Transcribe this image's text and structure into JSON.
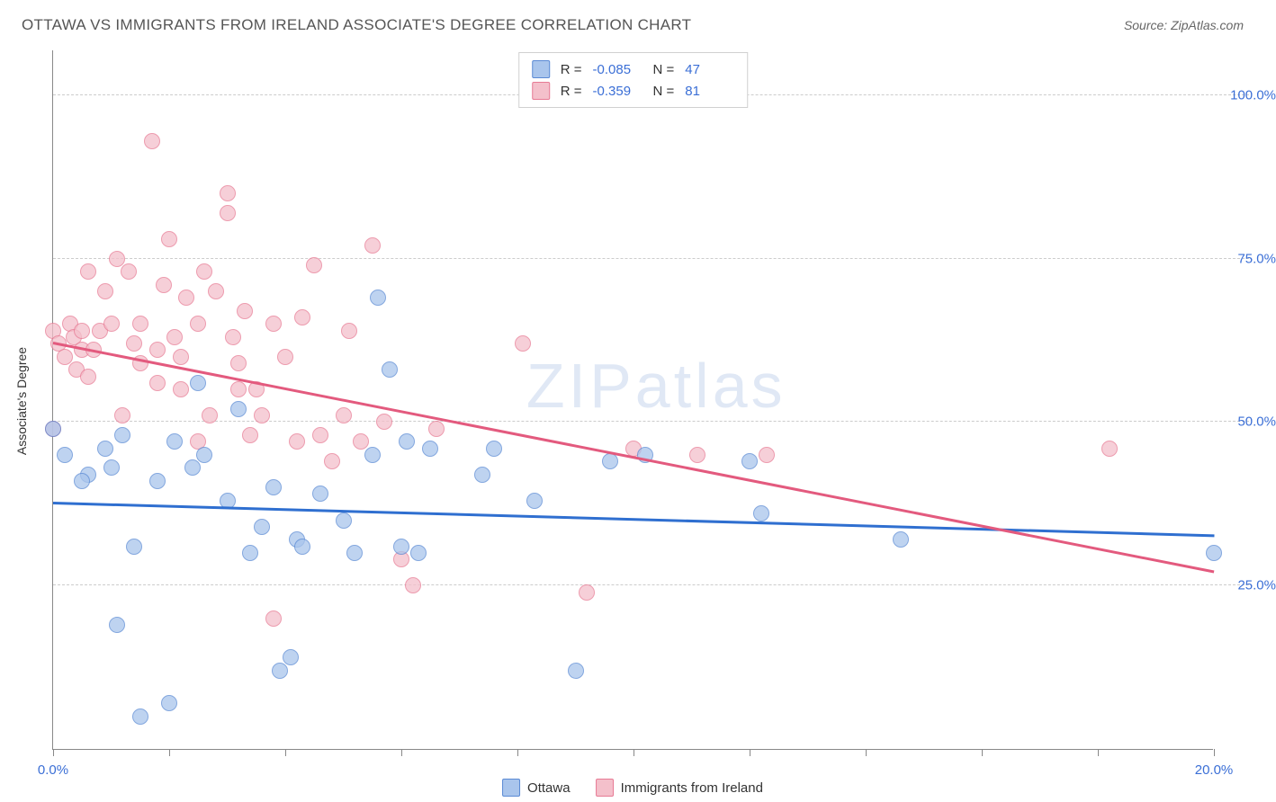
{
  "header": {
    "title": "OTTAWA VS IMMIGRANTS FROM IRELAND ASSOCIATE'S DEGREE CORRELATION CHART",
    "source_prefix": "Source: ",
    "source_name": "ZipAtlas.com"
  },
  "watermark": {
    "zip": "ZIP",
    "atlas": "atlas"
  },
  "chart": {
    "type": "scatter",
    "y_axis_title": "Associate's Degree",
    "background_color": "#ffffff",
    "grid_color": "#cccccc",
    "axis_color": "#888888",
    "x": {
      "min": 0,
      "max": 20,
      "ticks": [
        0,
        2,
        4,
        6,
        8,
        10,
        12,
        14,
        16,
        18,
        20
      ],
      "tick_labels_shown": {
        "0": "0.0%",
        "20": "20.0%"
      }
    },
    "y": {
      "min": 0,
      "max": 107,
      "ticks": [
        25,
        50,
        75,
        100
      ],
      "tick_labels": {
        "25": "25.0%",
        "50": "50.0%",
        "75": "75.0%",
        "100": "100.0%"
      }
    },
    "series": [
      {
        "name": "Ottawa",
        "fill": "#a9c5ec",
        "stroke": "#5a8ad4",
        "line_color": "#2f6fd0",
        "R": "-0.085",
        "N": "47",
        "trend": {
          "x1": 0,
          "y1": 37.5,
          "x2": 20,
          "y2": 32.5
        },
        "points": [
          [
            0.0,
            49
          ],
          [
            0.2,
            45
          ],
          [
            0.6,
            42
          ],
          [
            0.5,
            41
          ],
          [
            0.9,
            46
          ],
          [
            1.0,
            43
          ],
          [
            1.2,
            48
          ],
          [
            1.4,
            31
          ],
          [
            1.1,
            19
          ],
          [
            1.5,
            5
          ],
          [
            2.0,
            7
          ],
          [
            2.1,
            47
          ],
          [
            1.8,
            41
          ],
          [
            2.4,
            43
          ],
          [
            2.6,
            45
          ],
          [
            2.5,
            56
          ],
          [
            3.0,
            38
          ],
          [
            3.2,
            52
          ],
          [
            3.4,
            30
          ],
          [
            3.6,
            34
          ],
          [
            3.8,
            40
          ],
          [
            3.9,
            12
          ],
          [
            4.2,
            32
          ],
          [
            4.1,
            14
          ],
          [
            4.3,
            31
          ],
          [
            4.6,
            39
          ],
          [
            5.0,
            35
          ],
          [
            5.2,
            30
          ],
          [
            5.5,
            45
          ],
          [
            5.6,
            69
          ],
          [
            5.8,
            58
          ],
          [
            6.1,
            47
          ],
          [
            6.0,
            31
          ],
          [
            6.3,
            30
          ],
          [
            6.5,
            46
          ],
          [
            7.4,
            42
          ],
          [
            7.6,
            46
          ],
          [
            8.3,
            38
          ],
          [
            9.0,
            12
          ],
          [
            9.6,
            44
          ],
          [
            10.2,
            45
          ],
          [
            12.0,
            44
          ],
          [
            12.2,
            36
          ],
          [
            14.6,
            32
          ],
          [
            20.0,
            30
          ]
        ]
      },
      {
        "name": "Immigrants from Ireland",
        "fill": "#f4c0cb",
        "stroke": "#e77a94",
        "line_color": "#e35a7e",
        "R": "-0.359",
        "N": "81",
        "trend": {
          "x1": 0,
          "y1": 62,
          "x2": 20,
          "y2": 27
        },
        "points": [
          [
            0.0,
            49
          ],
          [
            0.0,
            64
          ],
          [
            0.1,
            62
          ],
          [
            0.2,
            60
          ],
          [
            0.3,
            65
          ],
          [
            0.35,
            63
          ],
          [
            0.4,
            58
          ],
          [
            0.5,
            64
          ],
          [
            0.5,
            61
          ],
          [
            0.6,
            57
          ],
          [
            0.6,
            73
          ],
          [
            0.7,
            61
          ],
          [
            0.8,
            64
          ],
          [
            0.9,
            70
          ],
          [
            1.0,
            65
          ],
          [
            1.1,
            75
          ],
          [
            1.2,
            51
          ],
          [
            1.3,
            73
          ],
          [
            1.4,
            62
          ],
          [
            1.5,
            59
          ],
          [
            1.5,
            65
          ],
          [
            1.7,
            93
          ],
          [
            1.8,
            56
          ],
          [
            1.8,
            61
          ],
          [
            1.9,
            71
          ],
          [
            2.0,
            78
          ],
          [
            2.1,
            63
          ],
          [
            2.2,
            55
          ],
          [
            2.2,
            60
          ],
          [
            2.3,
            69
          ],
          [
            2.5,
            47
          ],
          [
            2.5,
            65
          ],
          [
            2.6,
            73
          ],
          [
            2.7,
            51
          ],
          [
            2.8,
            70
          ],
          [
            3.0,
            85
          ],
          [
            3.0,
            82
          ],
          [
            3.1,
            63
          ],
          [
            3.2,
            55
          ],
          [
            3.2,
            59
          ],
          [
            3.3,
            67
          ],
          [
            3.4,
            48
          ],
          [
            3.5,
            55
          ],
          [
            3.6,
            51
          ],
          [
            3.8,
            65
          ],
          [
            3.8,
            20
          ],
          [
            4.0,
            60
          ],
          [
            4.2,
            47
          ],
          [
            4.3,
            66
          ],
          [
            4.5,
            74
          ],
          [
            4.6,
            48
          ],
          [
            4.8,
            44
          ],
          [
            5.0,
            51
          ],
          [
            5.1,
            64
          ],
          [
            5.3,
            47
          ],
          [
            5.5,
            77
          ],
          [
            5.7,
            50
          ],
          [
            6.0,
            29
          ],
          [
            6.2,
            25
          ],
          [
            6.6,
            49
          ],
          [
            8.1,
            62
          ],
          [
            9.2,
            24
          ],
          [
            10.0,
            46
          ],
          [
            11.1,
            45
          ],
          [
            12.3,
            45
          ],
          [
            18.2,
            46
          ]
        ]
      }
    ]
  },
  "stats_legend_labels": {
    "R": "R =",
    "N": "N ="
  },
  "bottom_legend": {
    "s1": "Ottawa",
    "s2": "Immigrants from Ireland"
  }
}
